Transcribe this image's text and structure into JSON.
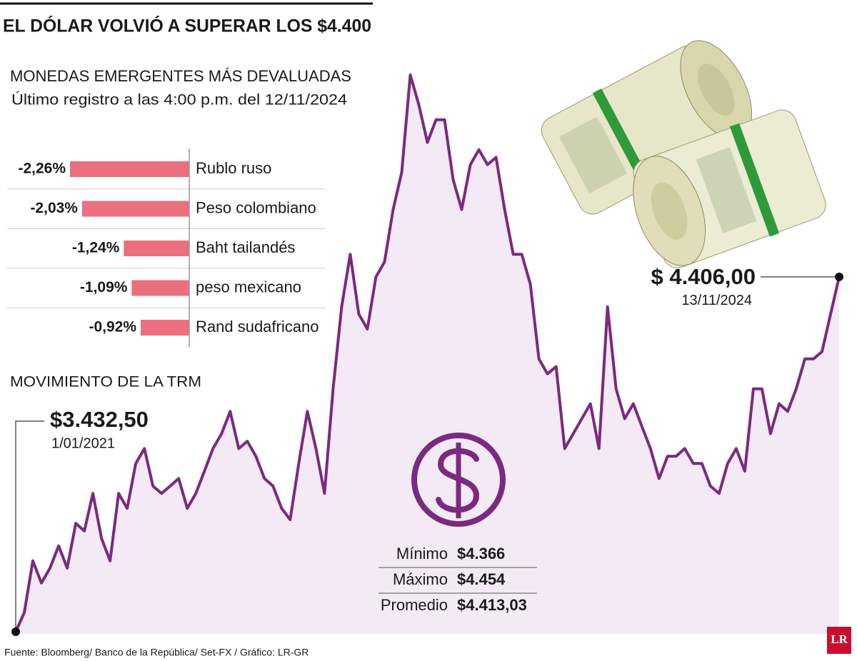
{
  "title": "EL DÓLAR VOLVIÓ A SUPERAR LOS $4.400",
  "chart_data": [
    {
      "type": "bar",
      "title": "MONEDAS EMERGENTES MÁS DEVALUADAS",
      "subtitle": "Último registro a las 4:00 p.m. del 12/11/2024",
      "categories": [
        "Rublo ruso",
        "Peso colombiano",
        "Baht tailandés",
        "peso mexicano",
        "Rand sudafricano"
      ],
      "values": [
        -2.26,
        -2.03,
        -1.24,
        -1.09,
        -0.92
      ],
      "value_labels": [
        "-2,26%",
        "-2,03%",
        "-1,24%",
        "-1,09%",
        "-0,92%"
      ],
      "color": "#ec6f7f"
    },
    {
      "type": "line",
      "title": "MOVIMIENTO DE LA TRM",
      "color": "#7a2a80",
      "area_color": "#f4eaf5",
      "categories": [
        "1/01/2021",
        null,
        null,
        null,
        null,
        null,
        null,
        null,
        null,
        null,
        null,
        null,
        null,
        null,
        null,
        null,
        null,
        null,
        null,
        null,
        null,
        null,
        null,
        null,
        null,
        null,
        null,
        null,
        null,
        null,
        null,
        null,
        null,
        null,
        null,
        null,
        null,
        null,
        null,
        null,
        null,
        null,
        null,
        null,
        null,
        null,
        null,
        null,
        null,
        null,
        null,
        null,
        null,
        null,
        null,
        null,
        null,
        null,
        null,
        null,
        null,
        null,
        null,
        null,
        null,
        null,
        null,
        null,
        null,
        null,
        null,
        null,
        null,
        null,
        null,
        null,
        null,
        null,
        null,
        null,
        null,
        null,
        null,
        null,
        null,
        null,
        null,
        null,
        null,
        null,
        null,
        null,
        null,
        null,
        null,
        null,
        "13/11/2024"
      ],
      "values": [
        3432.5,
        3485,
        3627,
        3566,
        3607,
        3668,
        3607,
        3730,
        3709,
        3812,
        3689,
        3627,
        3812,
        3771,
        3894,
        3935,
        3832,
        3812,
        3832,
        3853,
        3771,
        3812,
        3873,
        3935,
        3976,
        4037,
        3935,
        3955,
        3914,
        3853,
        3832,
        3771,
        3740,
        3894,
        4037,
        3935,
        3812,
        4099,
        4324,
        4468,
        4304,
        4263,
        4406,
        4447,
        4591,
        4693,
        4960,
        4878,
        4775,
        4837,
        4837,
        4673,
        4591,
        4714,
        4755,
        4714,
        4734,
        4591,
        4468,
        4468,
        4386,
        4181,
        4140,
        4160,
        3935,
        3976,
        4017,
        4058,
        3935,
        4324,
        4099,
        4017,
        4058,
        3996,
        3935,
        3853,
        3914,
        3914,
        3935,
        3894,
        3894,
        3832,
        3812,
        3894,
        3935,
        3873,
        4099,
        4099,
        3976,
        4058,
        4037,
        4099,
        4181,
        4181,
        4201,
        4304,
        4406.0
      ],
      "value_labels": [
        "$3.432,50",
        null,
        null,
        null,
        null,
        null,
        null,
        null,
        null,
        null,
        null,
        null,
        null,
        null,
        null,
        null,
        null,
        null,
        null,
        null,
        null,
        null,
        null,
        null,
        null,
        null,
        null,
        null,
        null,
        null,
        null,
        null,
        null,
        null,
        null,
        null,
        null,
        null,
        null,
        null,
        null,
        null,
        null,
        null,
        null,
        null,
        null,
        null,
        null,
        null,
        null,
        null,
        null,
        null,
        null,
        null,
        null,
        null,
        null,
        null,
        null,
        null,
        null,
        null,
        null,
        null,
        null,
        null,
        null,
        null,
        null,
        null,
        null,
        null,
        null,
        null,
        null,
        null,
        null,
        null,
        null,
        null,
        null,
        null,
        null,
        null,
        null,
        null,
        null,
        null,
        null,
        null,
        null,
        null,
        null,
        null,
        "$ 4.406,00"
      ]
    }
  ],
  "stats": [
    {
      "label": "Mínimo",
      "value": "$4.366"
    },
    {
      "label": "Máximo",
      "value": "$4.454"
    },
    {
      "label": "Promedio",
      "value": "$4.413,03"
    }
  ],
  "source": "Fuente: Bloomberg/ Banco de la República/ Set-FX / Gráfico: LR-GR",
  "logo": "LR"
}
